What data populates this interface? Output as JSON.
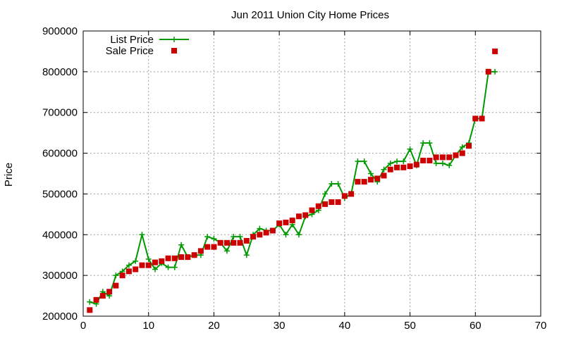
{
  "chart_data": {
    "type": "scatter",
    "title": "Jun 2011 Union City Home Prices",
    "xlabel": "",
    "ylabel": "Price",
    "xlim": [
      0,
      70
    ],
    "ylim": [
      200000,
      900000
    ],
    "xticks": [
      0,
      10,
      20,
      30,
      40,
      50,
      60,
      70
    ],
    "yticks": [
      200000,
      300000,
      400000,
      500000,
      600000,
      700000,
      800000,
      900000
    ],
    "grid": true,
    "legend": "top-left",
    "series": [
      {
        "name": "List Price",
        "style": "line+plus",
        "color": "#009900",
        "x": [
          1,
          2,
          3,
          4,
          5,
          6,
          7,
          8,
          9,
          10,
          11,
          12,
          13,
          14,
          15,
          16,
          17,
          18,
          19,
          20,
          21,
          22,
          23,
          24,
          25,
          26,
          27,
          28,
          29,
          30,
          31,
          32,
          33,
          34,
          35,
          36,
          37,
          38,
          39,
          40,
          41,
          42,
          43,
          44,
          45,
          46,
          47,
          48,
          49,
          50,
          51,
          52,
          53,
          54,
          55,
          56,
          57,
          58,
          59,
          60,
          61,
          62,
          63
        ],
        "y": [
          235000,
          230000,
          260000,
          250000,
          300000,
          310000,
          325000,
          335000,
          400000,
          340000,
          315000,
          330000,
          320000,
          320000,
          375000,
          345000,
          350000,
          350000,
          395000,
          390000,
          380000,
          360000,
          395000,
          395000,
          350000,
          400000,
          415000,
          410000,
          410000,
          425000,
          400000,
          425000,
          400000,
          445000,
          450000,
          460000,
          500000,
          525000,
          525000,
          490000,
          500000,
          580000,
          580000,
          550000,
          530000,
          560000,
          575000,
          580000,
          580000,
          610000,
          570000,
          625000,
          625000,
          575000,
          575000,
          570000,
          595000,
          615000,
          625000,
          685000,
          685000,
          800000,
          800000
        ]
      },
      {
        "name": "Sale Price",
        "style": "square",
        "color": "#cc0000",
        "x": [
          1,
          2,
          3,
          4,
          5,
          6,
          7,
          8,
          9,
          10,
          11,
          12,
          13,
          14,
          15,
          16,
          17,
          18,
          19,
          20,
          21,
          22,
          23,
          24,
          25,
          26,
          27,
          28,
          29,
          30,
          31,
          32,
          33,
          34,
          35,
          36,
          37,
          38,
          39,
          40,
          41,
          42,
          43,
          44,
          45,
          46,
          47,
          48,
          49,
          50,
          51,
          52,
          53,
          54,
          55,
          56,
          57,
          58,
          59,
          60,
          61,
          62,
          63
        ],
        "y": [
          215000,
          240000,
          250000,
          260000,
          275000,
          300000,
          310000,
          315000,
          325000,
          325000,
          332000,
          335000,
          342000,
          342000,
          345000,
          345000,
          350000,
          360000,
          370000,
          370000,
          380000,
          380000,
          380000,
          380000,
          385000,
          395000,
          400000,
          405000,
          410000,
          428000,
          430000,
          435000,
          445000,
          448000,
          460000,
          470000,
          475000,
          480000,
          480000,
          495000,
          500000,
          530000,
          530000,
          535000,
          538000,
          545000,
          560000,
          565000,
          565000,
          568000,
          572000,
          582000,
          582000,
          590000,
          590000,
          590000,
          595000,
          600000,
          618000,
          685000,
          685000,
          800000,
          850000
        ]
      }
    ]
  }
}
